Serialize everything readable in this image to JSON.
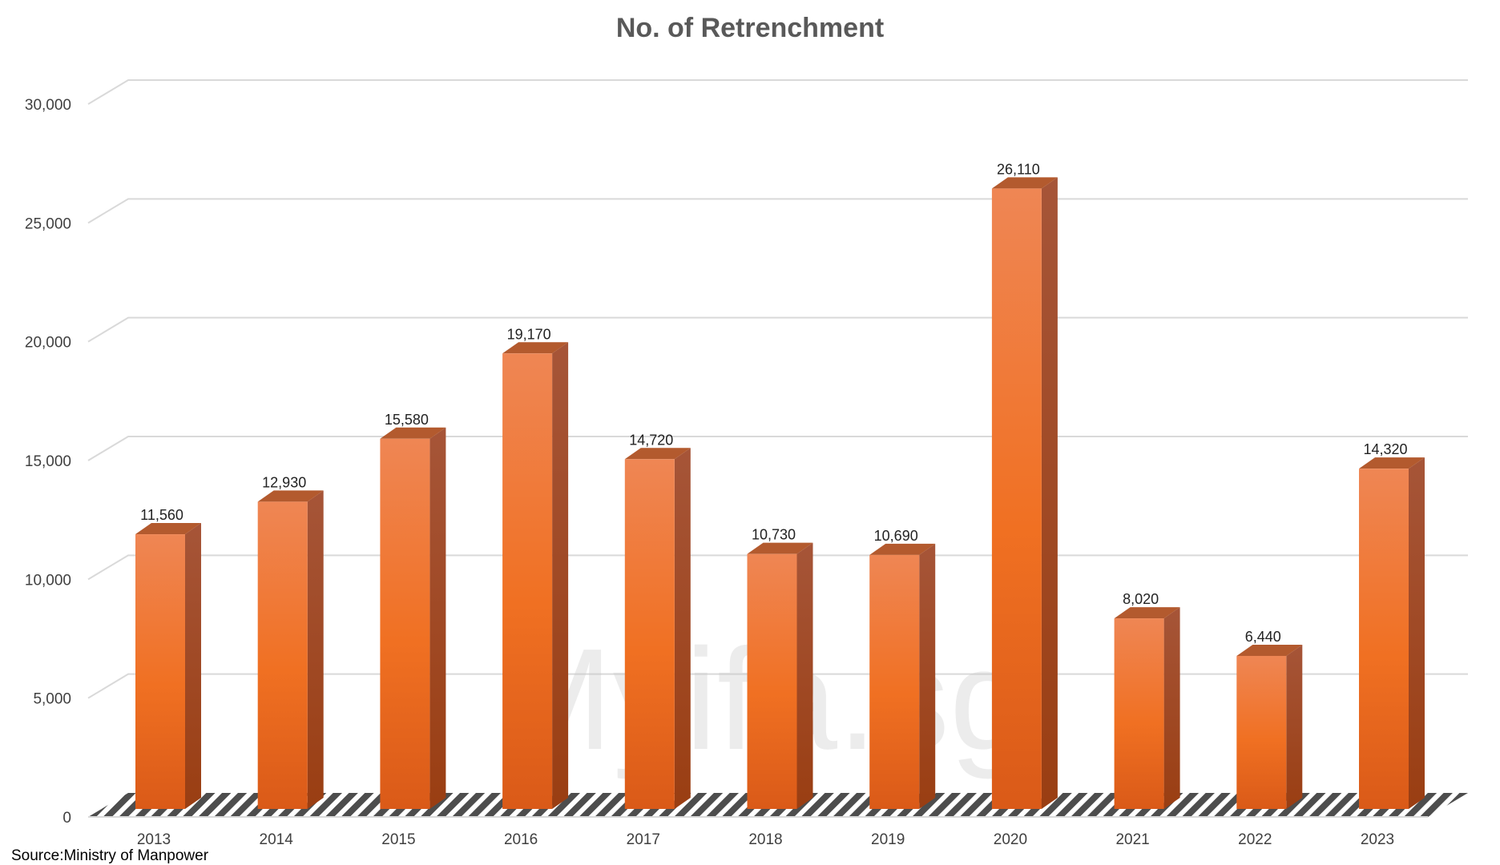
{
  "chart_data": {
    "type": "bar",
    "title": "No. of Retrenchment",
    "categories": [
      "2013",
      "2014",
      "2015",
      "2016",
      "2017",
      "2018",
      "2019",
      "2020",
      "2021",
      "2022",
      "2023"
    ],
    "values": [
      11560,
      12930,
      15580,
      19170,
      14720,
      10730,
      10690,
      26110,
      8020,
      6440,
      14320
    ],
    "data_labels": [
      "11,560",
      "12,930",
      "15,580",
      "19,170",
      "14,720",
      "10,730",
      "10,690",
      "26,110",
      "8,020",
      "6,440",
      "14,320"
    ],
    "y_ticks": [
      "0",
      "5,000",
      "10,000",
      "15,000",
      "20,000",
      "25,000",
      "30,000"
    ],
    "ylim": [
      0,
      30000
    ],
    "grid": true,
    "legend": false,
    "style": "3d-column"
  },
  "colors": {
    "bar_light": "#EF8654",
    "bar_mid": "#F07022",
    "bar_dark": "#DA5A18",
    "bar_side": "#A0441A",
    "bar_top": "#B35A2E",
    "grid": "#D9D9D9",
    "label": "#404040",
    "title": "#595959"
  },
  "watermark": "Myifa.sg",
  "source_note": "Source:Ministry of Manpower"
}
